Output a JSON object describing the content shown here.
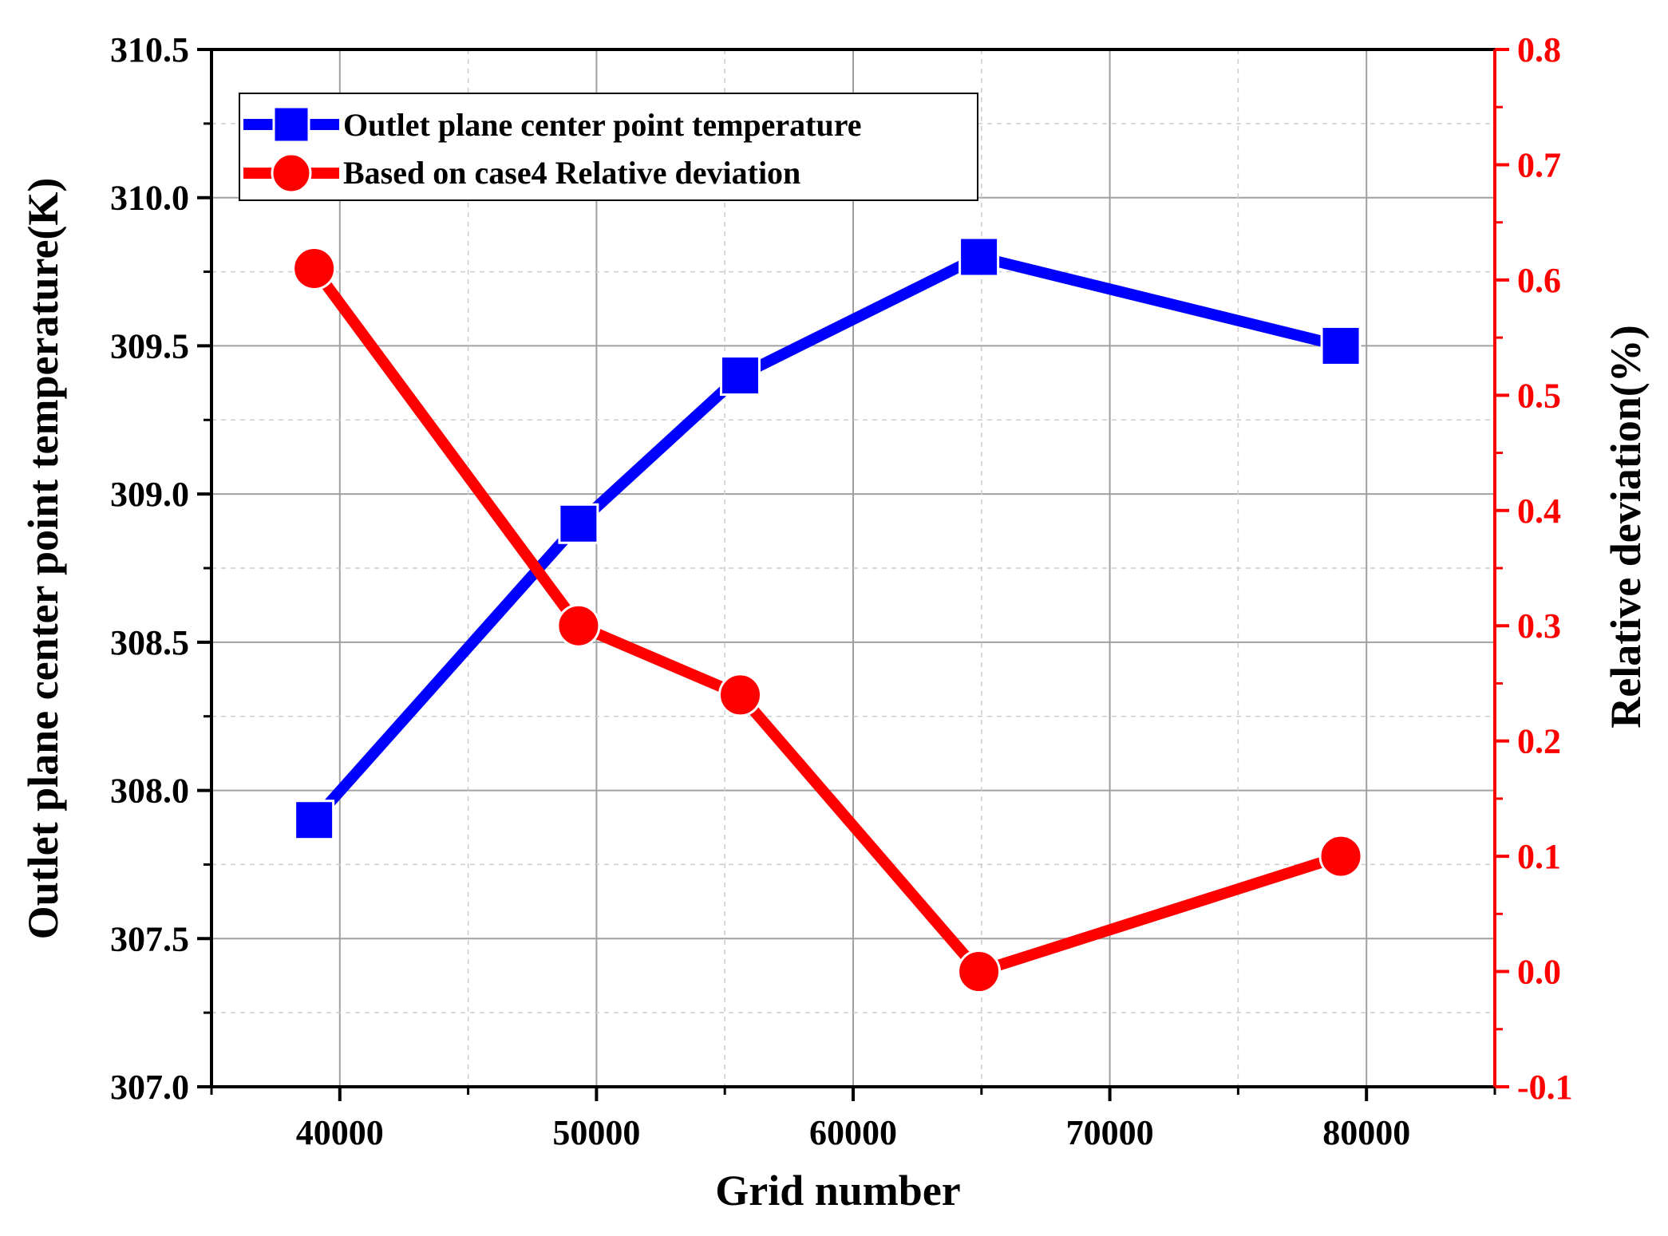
{
  "chart_data": {
    "type": "line",
    "xlabel": "Grid number",
    "ylabel_left": "Outlet plane center point temperature(K)",
    "ylabel_right": "Relative deviation(%)",
    "xlim": [
      35000,
      85000
    ],
    "ylim_left": [
      307.0,
      310.5
    ],
    "ylim_right": [
      -0.1,
      0.8
    ],
    "x_ticks": [
      "40000",
      "50000",
      "60000",
      "70000",
      "80000"
    ],
    "y_left_ticks": [
      "307.0",
      "307.5",
      "308.0",
      "308.5",
      "309.0",
      "309.5",
      "310.0",
      "310.5"
    ],
    "y_right_ticks": [
      "-0.1",
      "0.0",
      "0.1",
      "0.2",
      "0.3",
      "0.4",
      "0.5",
      "0.6",
      "0.7",
      "0.8"
    ],
    "grid": true,
    "legend_position": "top-left",
    "series": [
      {
        "name": "Outlet plane center point temperature",
        "axis": "left",
        "color": "#0000ff",
        "marker": "square",
        "x": [
          39000,
          49300,
          55600,
          64900,
          79000
        ],
        "y": [
          307.9,
          308.9,
          309.4,
          309.8,
          309.5
        ]
      },
      {
        "name": "Based on case4 Relative deviation",
        "axis": "right",
        "color": "#ff0000",
        "marker": "circle",
        "x": [
          39000,
          49300,
          55600,
          64900,
          79000
        ],
        "y": [
          0.61,
          0.3,
          0.24,
          0.0,
          0.1
        ]
      }
    ]
  }
}
